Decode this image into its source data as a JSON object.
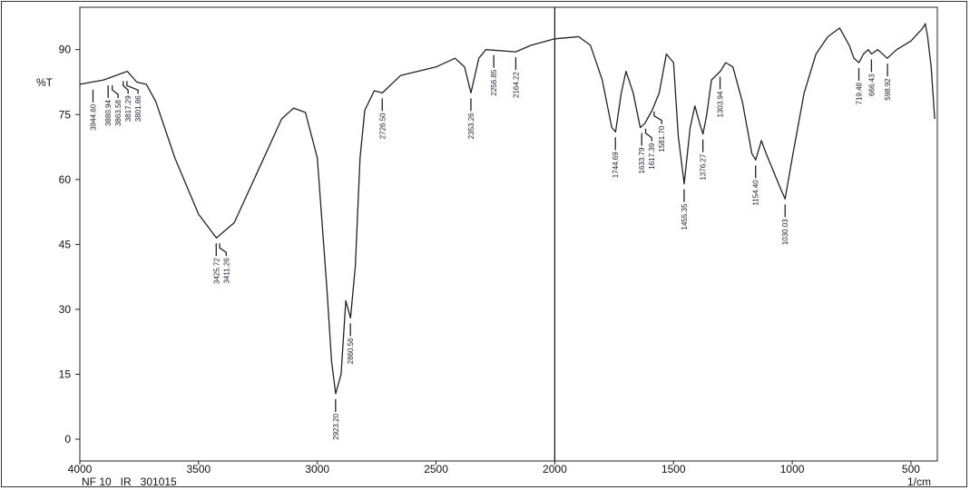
{
  "chart_data": {
    "type": "line",
    "title": "",
    "xlabel": "1/cm",
    "ylabel": "%T",
    "footer": "NF 10   IR   301015",
    "xlim": [
      4000,
      400
    ],
    "ylim": [
      -3,
      100
    ],
    "x_ticks": [
      "4000",
      "3500",
      "3000",
      "2500",
      "2000",
      "1500",
      "1000",
      "500"
    ],
    "y_ticks": [
      "0",
      "15",
      "30",
      "45",
      "60",
      "75",
      "90"
    ],
    "grid": false,
    "divider_at": 2000,
    "line_color": "#222222",
    "series": [
      {
        "x": [
          4000,
          3900,
          3800,
          3760,
          3720,
          3680,
          3600,
          3500,
          3425,
          3350,
          3250,
          3150,
          3100,
          3050,
          3000,
          2960,
          2940,
          2923,
          2900,
          2880,
          2870,
          2860,
          2840,
          2820,
          2800,
          2760,
          2726,
          2650,
          2500,
          2420,
          2380,
          2353,
          2320,
          2290,
          2164,
          2100,
          2000,
          1900,
          1850,
          1800,
          1760,
          1744,
          1720,
          1700,
          1670,
          1640,
          1620,
          1590,
          1560,
          1530,
          1500,
          1480,
          1455,
          1430,
          1410,
          1390,
          1376,
          1360,
          1340,
          1303,
          1280,
          1250,
          1210,
          1170,
          1154,
          1130,
          1110,
          1080,
          1050,
          1030,
          1000,
          950,
          900,
          850,
          800,
          760,
          740,
          719,
          700,
          680,
          666,
          640,
          600,
          560,
          500,
          450,
          440,
          430,
          415,
          400
        ],
        "y": [
          82,
          83,
          85,
          82.5,
          82,
          78,
          65,
          52,
          46.5,
          50,
          62,
          74,
          76.5,
          75.5,
          65,
          35,
          18,
          10.5,
          15,
          32,
          30,
          28,
          40,
          65,
          76,
          80.5,
          80,
          84,
          86,
          88,
          86,
          80,
          88,
          90,
          89.5,
          91,
          92.5,
          93,
          91,
          83,
          72,
          71,
          80,
          85,
          80,
          72,
          73,
          76,
          80,
          89,
          87,
          70,
          59,
          72,
          77,
          73,
          70.5,
          75,
          83,
          85,
          87,
          86,
          78,
          66,
          64.5,
          69,
          66,
          62,
          58,
          55.5,
          65,
          80,
          89,
          93,
          95,
          91,
          88,
          87,
          89,
          90,
          89,
          90,
          88,
          90,
          92,
          95,
          96,
          93,
          86,
          74
        ]
      }
    ],
    "peak_labels": [
      {
        "x": 3944.6,
        "y": 82,
        "label": "3944.60"
      },
      {
        "x": 3880.94,
        "y": 83,
        "label": "3880.94"
      },
      {
        "x": 3863.58,
        "y": 83,
        "label": "3863.58"
      },
      {
        "x": 3817.29,
        "y": 84,
        "label": "3817.29"
      },
      {
        "x": 3801.86,
        "y": 84,
        "label": "3801.86"
      },
      {
        "x": 3425.72,
        "y": 46.5,
        "label": "3425.72"
      },
      {
        "x": 3411.26,
        "y": 46.5,
        "label": "3411.26"
      },
      {
        "x": 2923.2,
        "y": 10.5,
        "label": "2923.20"
      },
      {
        "x": 2860.56,
        "y": 28,
        "label": "2860.56"
      },
      {
        "x": 2726.5,
        "y": 80,
        "label": "2726.50"
      },
      {
        "x": 2353.26,
        "y": 80,
        "label": "2353.26"
      },
      {
        "x": 2256.85,
        "y": 90,
        "label": "2256.85"
      },
      {
        "x": 2164.22,
        "y": 89.5,
        "label": "2164.22"
      },
      {
        "x": 1744.69,
        "y": 71,
        "label": "1744.69"
      },
      {
        "x": 1633.79,
        "y": 72,
        "label": "1633.79"
      },
      {
        "x": 1617.39,
        "y": 73,
        "label": "1617.39"
      },
      {
        "x": 1581.7,
        "y": 77,
        "label": "1581.70"
      },
      {
        "x": 1455.35,
        "y": 59,
        "label": "1455.35"
      },
      {
        "x": 1376.27,
        "y": 70.5,
        "label": "1376.27"
      },
      {
        "x": 1303.94,
        "y": 85,
        "label": "1303.94"
      },
      {
        "x": 1154.4,
        "y": 64.5,
        "label": "1154.40"
      },
      {
        "x": 1030.03,
        "y": 55.5,
        "label": "1030.03"
      },
      {
        "x": 719.48,
        "y": 87,
        "label": "719.48"
      },
      {
        "x": 666.43,
        "y": 89,
        "label": "666.43"
      },
      {
        "x": 598.92,
        "y": 88,
        "label": "598.92"
      }
    ]
  }
}
